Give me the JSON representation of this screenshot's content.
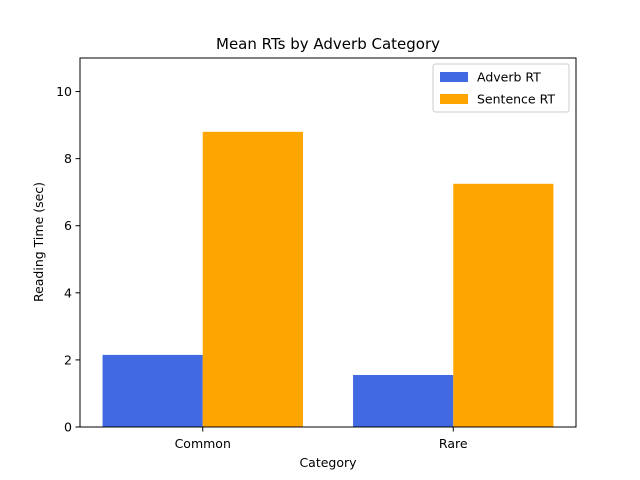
{
  "chart_data": {
    "type": "bar",
    "title": "Mean RTs by Adverb Category",
    "xlabel": "Category",
    "ylabel": "Reading Time (sec)",
    "categories": [
      "Common",
      "Rare"
    ],
    "series": [
      {
        "name": "Adverb RT",
        "values": [
          2.15,
          1.55
        ],
        "color": "#4169e1"
      },
      {
        "name": "Sentence RT",
        "values": [
          8.8,
          7.25
        ],
        "color": "#ffa500"
      }
    ],
    "ylim": [
      0,
      11
    ],
    "yticks": [
      0,
      2,
      4,
      6,
      8,
      10
    ],
    "ytick_labels": [
      "0",
      "2",
      "4",
      "6",
      "8",
      "10"
    ],
    "grid": false,
    "legend_position": "top-right"
  }
}
